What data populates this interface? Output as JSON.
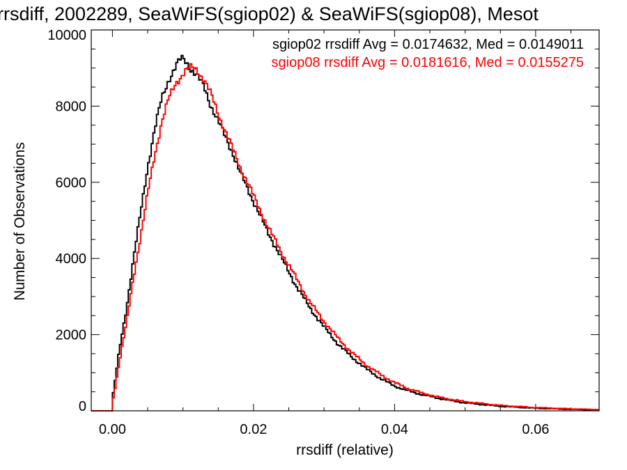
{
  "chart_data": {
    "type": "line",
    "title": "rrsdiff, 2002289, SeaWiFS(sgiop02) & SeaWiFS(sgiop08), Mesot",
    "xlabel": "rrsdiff (relative)",
    "ylabel": "Number of Observations",
    "xlim": [
      -0.003,
      0.069
    ],
    "ylim": [
      0,
      10000
    ],
    "xticks": [
      "0.00",
      "0.02",
      "0.04",
      "0.06"
    ],
    "xtick_values": [
      0.0,
      0.02,
      0.04,
      0.06
    ],
    "yticks": [
      "0",
      "2000",
      "4000",
      "6000",
      "8000",
      "10000"
    ],
    "ytick_values": [
      0,
      2000,
      4000,
      6000,
      8000,
      10000
    ],
    "grid": false,
    "legend_position": "top-right",
    "series": [
      {
        "name": "sgiop02 rrsdiff Avg = 0.0174632, Med = 0.0149011",
        "color": "#000000",
        "x": [
          -0.003,
          -0.0003,
          0.0,
          0.001,
          0.002,
          0.003,
          0.004,
          0.005,
          0.006,
          0.007,
          0.008,
          0.009,
          0.0095,
          0.01,
          0.0105,
          0.011,
          0.012,
          0.013,
          0.014,
          0.015,
          0.016,
          0.017,
          0.018,
          0.019,
          0.02,
          0.022,
          0.024,
          0.026,
          0.028,
          0.03,
          0.032,
          0.034,
          0.036,
          0.038,
          0.04,
          0.042,
          0.044,
          0.046,
          0.048,
          0.05,
          0.055,
          0.06,
          0.065,
          0.069
        ],
        "y": [
          0,
          0,
          300,
          1600,
          2700,
          4000,
          5200,
          6400,
          7400,
          8200,
          8700,
          9050,
          9200,
          9250,
          9150,
          9000,
          8800,
          8500,
          8000,
          7600,
          7200,
          6800,
          6300,
          5900,
          5500,
          4700,
          4000,
          3300,
          2700,
          2200,
          1750,
          1400,
          1100,
          850,
          650,
          520,
          420,
          340,
          270,
          210,
          120,
          70,
          40,
          25
        ]
      },
      {
        "name": "sgiop08 rrsdiff Avg = 0.0181616, Med = 0.0155275",
        "color": "#ff0000",
        "x": [
          -0.003,
          -0.0003,
          0.0,
          0.001,
          0.002,
          0.003,
          0.004,
          0.005,
          0.006,
          0.007,
          0.008,
          0.009,
          0.01,
          0.0105,
          0.011,
          0.0115,
          0.012,
          0.013,
          0.014,
          0.015,
          0.016,
          0.017,
          0.018,
          0.019,
          0.02,
          0.022,
          0.024,
          0.026,
          0.028,
          0.03,
          0.032,
          0.034,
          0.036,
          0.038,
          0.04,
          0.042,
          0.044,
          0.046,
          0.048,
          0.05,
          0.055,
          0.06,
          0.065,
          0.069
        ],
        "y": [
          0,
          0,
          200,
          1300,
          2300,
          3500,
          4600,
          5700,
          6700,
          7600,
          8200,
          8600,
          8850,
          8950,
          9000,
          9000,
          8950,
          8700,
          8300,
          7800,
          7350,
          6900,
          6450,
          6050,
          5650,
          4850,
          4150,
          3500,
          2850,
          2350,
          1900,
          1520,
          1200,
          950,
          740,
          580,
          460,
          370,
          300,
          240,
          140,
          85,
          50,
          30
        ]
      }
    ]
  }
}
